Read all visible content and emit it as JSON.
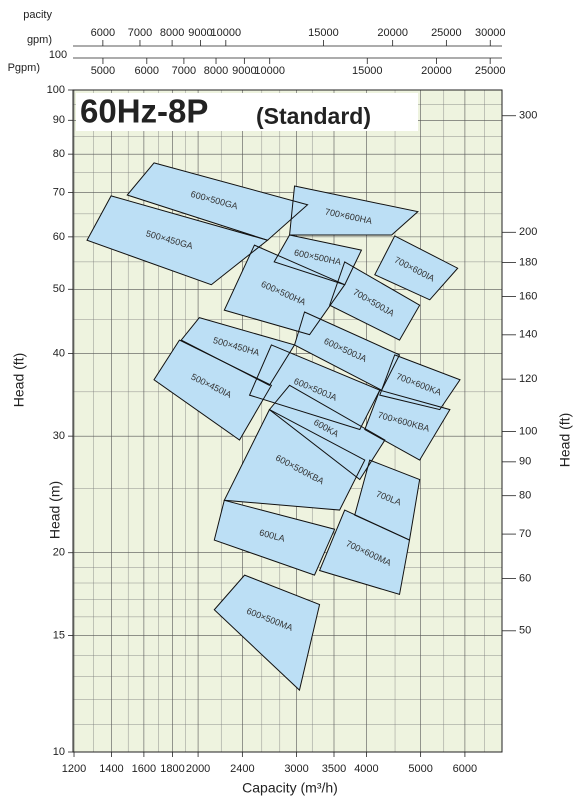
{
  "chart_data": {
    "type": "region",
    "title": "60Hz-8P",
    "subtitle": "(Standard)",
    "xlabel": "Capacity (m³/h)",
    "ylabel": "Head (m)",
    "y2label": "Head (ft)",
    "y3label": "Head (ft)",
    "x2label": "pacity",
    "x2unit": "gpm)",
    "x3unit": "Pgpm)",
    "x2note": "100",
    "log_x": true,
    "log_y": true,
    "grid": true,
    "background": "#eef3df",
    "region_color": "#bcdff5",
    "xlim": [
      1195,
      6990
    ],
    "xticks": [
      1200,
      1400,
      1600,
      1800,
      2000,
      2400,
      3000,
      3500,
      4000,
      5000,
      6000
    ],
    "xminor": [
      1300,
      1500,
      1700,
      1900,
      2200,
      2600,
      2800,
      3200,
      4500,
      5500,
      6500
    ],
    "ylim": [
      10,
      100
    ],
    "yticks": [
      10,
      15,
      20,
      30,
      40,
      50,
      60,
      70,
      80,
      90,
      100
    ],
    "yminor": [
      11,
      12,
      13,
      14,
      16,
      17,
      18,
      19,
      25,
      35,
      45,
      55,
      65,
      75,
      85,
      95
    ],
    "y2lim": [
      32.8,
      328.1
    ],
    "y2ticks": [
      50,
      60,
      70,
      80,
      90,
      100,
      120,
      140,
      160,
      180,
      200,
      300
    ],
    "x2lim": [
      5300,
      31500
    ],
    "x2ticks": [
      6000,
      7000,
      8000,
      9000,
      10000,
      15000,
      20000,
      25000,
      30000
    ],
    "x3lim": [
      4415,
      26260
    ],
    "x3ticks": [
      5000,
      6000,
      7000,
      8000,
      9000,
      10000,
      15000,
      20000,
      25000
    ],
    "regions": [
      {
        "name": "600×500GA",
        "x": [
          1668,
          3139,
          2662,
          1494
        ],
        "values": [
          77.6,
          67.1,
          59.3,
          69.4
        ]
      },
      {
        "name": "500×450GA",
        "x": [
          1398,
          2662,
          2112,
          1266
        ],
        "values": [
          69.2,
          59.3,
          50.8,
          59.3
        ]
      },
      {
        "name": "700×600HA",
        "x": [
          2975,
          4944,
          4438,
          2915
        ],
        "values": [
          71.6,
          65.5,
          60.4,
          60.4
        ]
      },
      {
        "name": "600×500HA",
        "x": [
          2915,
          3919,
          3658,
          2736
        ],
        "values": [
          60.4,
          57.3,
          50.8,
          55.0
        ]
      },
      {
        "name": "700×600IA",
        "x": [
          4494,
          5824,
          5192,
          4140
        ],
        "values": [
          60.2,
          53.8,
          48.2,
          52.6
        ]
      },
      {
        "name": "600×500HA",
        "x": [
          2522,
          3658,
          3165,
          2228
        ],
        "values": [
          58.3,
          50.8,
          42.7,
          46.5
        ]
      },
      {
        "name": "700×500JA",
        "x": [
          3658,
          4980,
          4584,
          3438
        ],
        "values": [
          55.0,
          47.3,
          41.9,
          47.3
        ]
      },
      {
        "name": "500×450HA",
        "x": [
          2010,
          2975,
          2683,
          1866
        ],
        "values": [
          45.3,
          41.2,
          35.8,
          41.9
        ]
      },
      {
        "name": "600×500JA",
        "x": [
          3100,
          4584,
          4258,
          2975
        ],
        "values": [
          46.2,
          39.8,
          35.2,
          41.2
        ]
      },
      {
        "name": "500×450IA",
        "x": [
          1852,
          2705,
          2372,
          1668
        ],
        "values": [
          41.9,
          35.8,
          29.6,
          36.5
        ]
      },
      {
        "name": "600×500JA",
        "x": [
          2705,
          4226,
          3892,
          2472
        ],
        "values": [
          41.2,
          35.2,
          30.7,
          34.6
        ]
      },
      {
        "name": "700×600KA",
        "x": [
          4494,
          5880,
          5410,
          4226
        ],
        "values": [
          39.8,
          36.5,
          32.9,
          34.6
        ]
      },
      {
        "name": "700×600KBA",
        "x": [
          4226,
          5640,
          4980,
          3973
        ],
        "values": [
          35.2,
          32.9,
          27.6,
          30.7
        ]
      },
      {
        "name": "600KA",
        "x": [
          2915,
          4316,
          3892,
          2683
        ],
        "values": [
          35.8,
          29.6,
          25.8,
          32.9
        ]
      },
      {
        "name": "600×500KBA",
        "x": [
          2683,
          3973,
          3582,
          2228
        ],
        "values": [
          32.9,
          27.6,
          23.2,
          24.0
        ]
      },
      {
        "name": "700LA",
        "x": [
          4054,
          4980,
          4776,
          3812
        ],
        "values": [
          27.6,
          25.8,
          20.9,
          22.8
        ]
      },
      {
        "name": "700×600MA",
        "x": [
          3658,
          4776,
          4584,
          3298
        ],
        "values": [
          23.2,
          20.9,
          17.3,
          18.8
        ]
      },
      {
        "name": "600LA",
        "x": [
          2228,
          3509,
          3230,
          2138
        ],
        "values": [
          24.0,
          21.7,
          18.5,
          20.9
        ]
      },
      {
        "name": "600×500MA",
        "x": [
          2422,
          3298,
          3036,
          2138
        ],
        "values": [
          18.5,
          16.7,
          12.4,
          16.4
        ]
      }
    ]
  }
}
